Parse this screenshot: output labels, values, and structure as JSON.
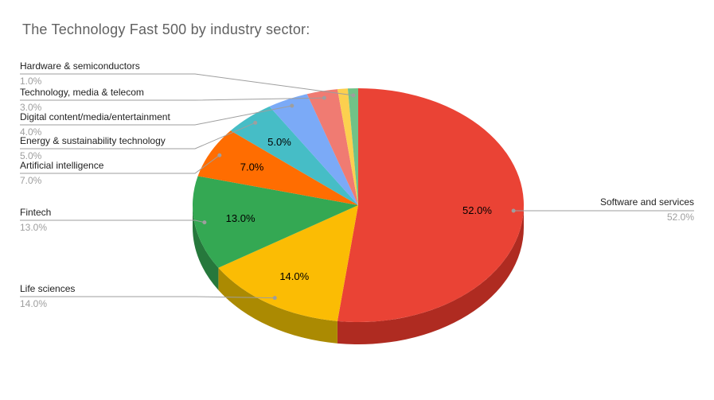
{
  "title": "The Technology Fast 500 by industry sector:",
  "colors": {
    "background": "#ffffff",
    "title_text": "#616161",
    "label_text": "#1f1f1f",
    "pct_text": "#9e9e9e",
    "callout_line": "#9e9e9e",
    "value_label_text": "#000000"
  },
  "chart_data": {
    "type": "pie",
    "style": "3d",
    "title": "The Technology Fast 500 by industry sector:",
    "direction": "clockwise",
    "start_angle_deg": 0,
    "legend_position": "labeled-callouts",
    "slices": [
      {
        "label": "Software and services",
        "value": 52.0,
        "pct_label": "52.0%",
        "color": "#EA4335",
        "side_color": "#AF2B21",
        "value_label_on_slice": true,
        "callout": "right"
      },
      {
        "label": "Life sciences",
        "value": 14.0,
        "pct_label": "14.0%",
        "color": "#FBBC04",
        "side_color": "#AB8A02",
        "value_label_on_slice": true,
        "callout": "left"
      },
      {
        "label": "Fintech",
        "value": 13.0,
        "pct_label": "13.0%",
        "color": "#34A853",
        "side_color": "#26783C",
        "value_label_on_slice": true,
        "callout": "left"
      },
      {
        "label": "Artificial intelligence",
        "value": 7.0,
        "pct_label": "7.0%",
        "color": "#FF6D01",
        "value_label_on_slice": true,
        "callout": "left"
      },
      {
        "label": "Energy & sustainability technology",
        "value": 5.0,
        "pct_label": "5.0%",
        "color": "#46BDC6",
        "value_label_on_slice": true,
        "callout": "left"
      },
      {
        "label": "Digital content/media/entertainment",
        "value": 4.0,
        "pct_label": "4.0%",
        "color": "#7BAAF7",
        "value_label_on_slice": false,
        "callout": "left"
      },
      {
        "label": "Technology, media & telecom",
        "value": 3.0,
        "pct_label": "3.0%",
        "color": "#F07B72",
        "value_label_on_slice": false,
        "callout": "left"
      },
      {
        "label": "",
        "value": 1.0,
        "pct_label": "",
        "color": "#FCD04F",
        "value_label_on_slice": false,
        "callout": "none"
      },
      {
        "label": "Hardware & semiconductors",
        "value": 1.0,
        "pct_label": "1.0%",
        "color": "#71C287",
        "value_label_on_slice": false,
        "callout": "left"
      }
    ]
  }
}
